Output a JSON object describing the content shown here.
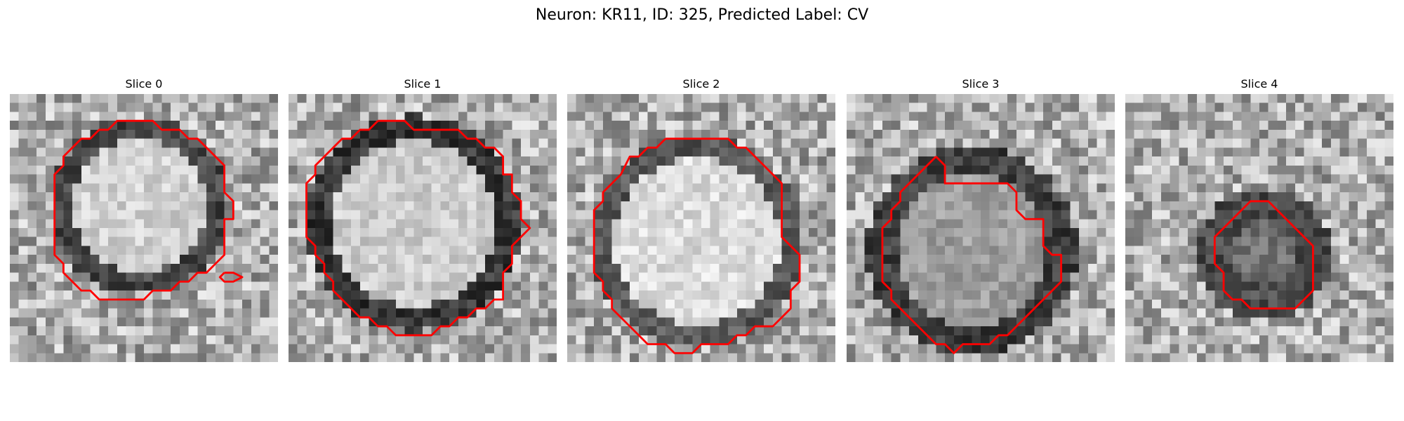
{
  "figure": {
    "title": "Neuron: KR11, ID: 325, Predicted Label: CV"
  },
  "slices": [
    {
      "title": "Slice 0",
      "contours": [
        [
          [
            14,
            3
          ],
          [
            16,
            3
          ],
          [
            17,
            4
          ],
          [
            19,
            4
          ],
          [
            20,
            5
          ],
          [
            21,
            5
          ],
          [
            22,
            6
          ],
          [
            23,
            7
          ],
          [
            24,
            8
          ],
          [
            24,
            11
          ],
          [
            25,
            12
          ],
          [
            25,
            14
          ],
          [
            24,
            14
          ],
          [
            24,
            18
          ],
          [
            23,
            19
          ],
          [
            22,
            20
          ],
          [
            21,
            20
          ],
          [
            20,
            21
          ],
          [
            19,
            21
          ],
          [
            18,
            22
          ],
          [
            16,
            22
          ],
          [
            15,
            23
          ],
          [
            10,
            23
          ],
          [
            9,
            22
          ],
          [
            8,
            22
          ],
          [
            7,
            21
          ],
          [
            6,
            20
          ],
          [
            6,
            19
          ],
          [
            5,
            18
          ],
          [
            5,
            9
          ],
          [
            6,
            8
          ],
          [
            6,
            7
          ],
          [
            7,
            6
          ],
          [
            8,
            5
          ],
          [
            9,
            5
          ],
          [
            10,
            4
          ],
          [
            11,
            4
          ],
          [
            12,
            3
          ],
          [
            14,
            3
          ]
        ],
        [
          [
            24,
            20
          ],
          [
            25,
            20
          ],
          [
            26,
            20.5
          ],
          [
            25,
            21
          ],
          [
            24,
            21
          ],
          [
            23.5,
            20.5
          ],
          [
            24,
            20
          ]
        ]
      ]
    },
    {
      "title": "Slice 1",
      "contours": [
        [
          [
            10,
            3
          ],
          [
            13,
            3
          ],
          [
            14,
            4
          ],
          [
            19,
            4
          ],
          [
            20,
            5
          ],
          [
            21,
            5
          ],
          [
            22,
            6
          ],
          [
            23,
            6
          ],
          [
            24,
            7
          ],
          [
            24,
            9
          ],
          [
            25,
            9
          ],
          [
            25,
            11
          ],
          [
            26,
            12
          ],
          [
            26,
            14
          ],
          [
            27,
            15
          ],
          [
            26,
            16
          ],
          [
            25,
            17
          ],
          [
            25,
            19
          ],
          [
            24,
            20
          ],
          [
            24,
            23
          ],
          [
            23,
            23
          ],
          [
            22,
            24
          ],
          [
            21,
            24
          ],
          [
            20,
            25
          ],
          [
            19,
            25
          ],
          [
            18,
            26
          ],
          [
            17,
            26
          ],
          [
            16,
            27
          ],
          [
            12,
            27
          ],
          [
            11,
            26
          ],
          [
            10,
            26
          ],
          [
            9,
            25
          ],
          [
            8,
            25
          ],
          [
            7,
            24
          ],
          [
            6,
            23
          ],
          [
            5,
            22
          ],
          [
            5,
            21
          ],
          [
            4,
            20
          ],
          [
            4,
            19
          ],
          [
            3,
            18
          ],
          [
            3,
            17
          ],
          [
            2,
            16
          ],
          [
            2,
            10
          ],
          [
            3,
            9
          ],
          [
            3,
            8
          ],
          [
            4,
            7
          ],
          [
            5,
            6
          ],
          [
            6,
            5
          ],
          [
            7,
            5
          ],
          [
            8,
            4
          ],
          [
            9,
            4
          ],
          [
            10,
            3
          ]
        ]
      ]
    },
    {
      "title": "Slice 2",
      "contours": [
        [
          [
            11,
            5
          ],
          [
            18,
            5
          ],
          [
            19,
            6
          ],
          [
            20,
            6
          ],
          [
            21,
            7
          ],
          [
            22,
            8
          ],
          [
            23,
            9
          ],
          [
            24,
            10
          ],
          [
            24,
            16
          ],
          [
            25,
            17
          ],
          [
            26,
            18
          ],
          [
            26,
            21
          ],
          [
            25,
            22
          ],
          [
            25,
            24
          ],
          [
            24,
            25
          ],
          [
            23,
            26
          ],
          [
            21,
            26
          ],
          [
            20,
            27
          ],
          [
            19,
            27
          ],
          [
            18,
            28
          ],
          [
            15,
            28
          ],
          [
            14,
            29
          ],
          [
            12,
            29
          ],
          [
            11,
            28
          ],
          [
            9,
            28
          ],
          [
            8,
            27
          ],
          [
            7,
            26
          ],
          [
            6,
            25
          ],
          [
            5,
            24
          ],
          [
            5,
            23
          ],
          [
            4,
            22
          ],
          [
            4,
            21
          ],
          [
            3,
            20
          ],
          [
            3,
            13
          ],
          [
            4,
            12
          ],
          [
            4,
            11
          ],
          [
            5,
            10
          ],
          [
            6,
            9
          ],
          [
            7,
            7
          ],
          [
            8,
            7
          ],
          [
            9,
            6
          ],
          [
            10,
            6
          ],
          [
            11,
            5
          ]
        ]
      ]
    },
    {
      "title": "Slice 3",
      "contours": [
        [
          [
            10,
            7
          ],
          [
            11,
            8
          ],
          [
            11,
            10
          ],
          [
            18,
            10
          ],
          [
            19,
            11
          ],
          [
            19,
            13
          ],
          [
            20,
            14
          ],
          [
            22,
            14
          ],
          [
            22,
            17
          ],
          [
            23,
            18
          ],
          [
            24,
            18
          ],
          [
            24,
            21
          ],
          [
            23,
            22
          ],
          [
            22,
            23
          ],
          [
            21,
            24
          ],
          [
            20,
            25
          ],
          [
            19,
            26
          ],
          [
            18,
            27
          ],
          [
            17,
            27
          ],
          [
            16,
            28
          ],
          [
            13,
            28
          ],
          [
            12,
            29
          ],
          [
            11,
            28
          ],
          [
            10,
            28
          ],
          [
            9,
            27
          ],
          [
            8,
            26
          ],
          [
            7,
            25
          ],
          [
            6,
            24
          ],
          [
            5,
            23
          ],
          [
            5,
            22
          ],
          [
            4,
            21
          ],
          [
            4,
            15
          ],
          [
            5,
            14
          ],
          [
            5,
            13
          ],
          [
            6,
            12
          ],
          [
            6,
            11
          ],
          [
            7,
            10
          ],
          [
            8,
            9
          ],
          [
            9,
            8
          ],
          [
            10,
            7
          ]
        ]
      ]
    },
    {
      "title": "Slice 4",
      "contours": [
        [
          [
            15,
            12
          ],
          [
            16,
            12
          ],
          [
            17,
            13
          ],
          [
            18,
            14
          ],
          [
            19,
            15
          ],
          [
            20,
            16
          ],
          [
            21,
            17
          ],
          [
            21,
            22
          ],
          [
            20,
            23
          ],
          [
            19,
            24
          ],
          [
            14,
            24
          ],
          [
            13,
            23
          ],
          [
            12,
            23
          ],
          [
            11,
            22
          ],
          [
            11,
            20
          ],
          [
            10,
            19
          ],
          [
            10,
            16
          ],
          [
            11,
            15
          ],
          [
            12,
            14
          ],
          [
            13,
            13
          ],
          [
            14,
            12
          ],
          [
            15,
            12
          ]
        ]
      ]
    }
  ]
}
